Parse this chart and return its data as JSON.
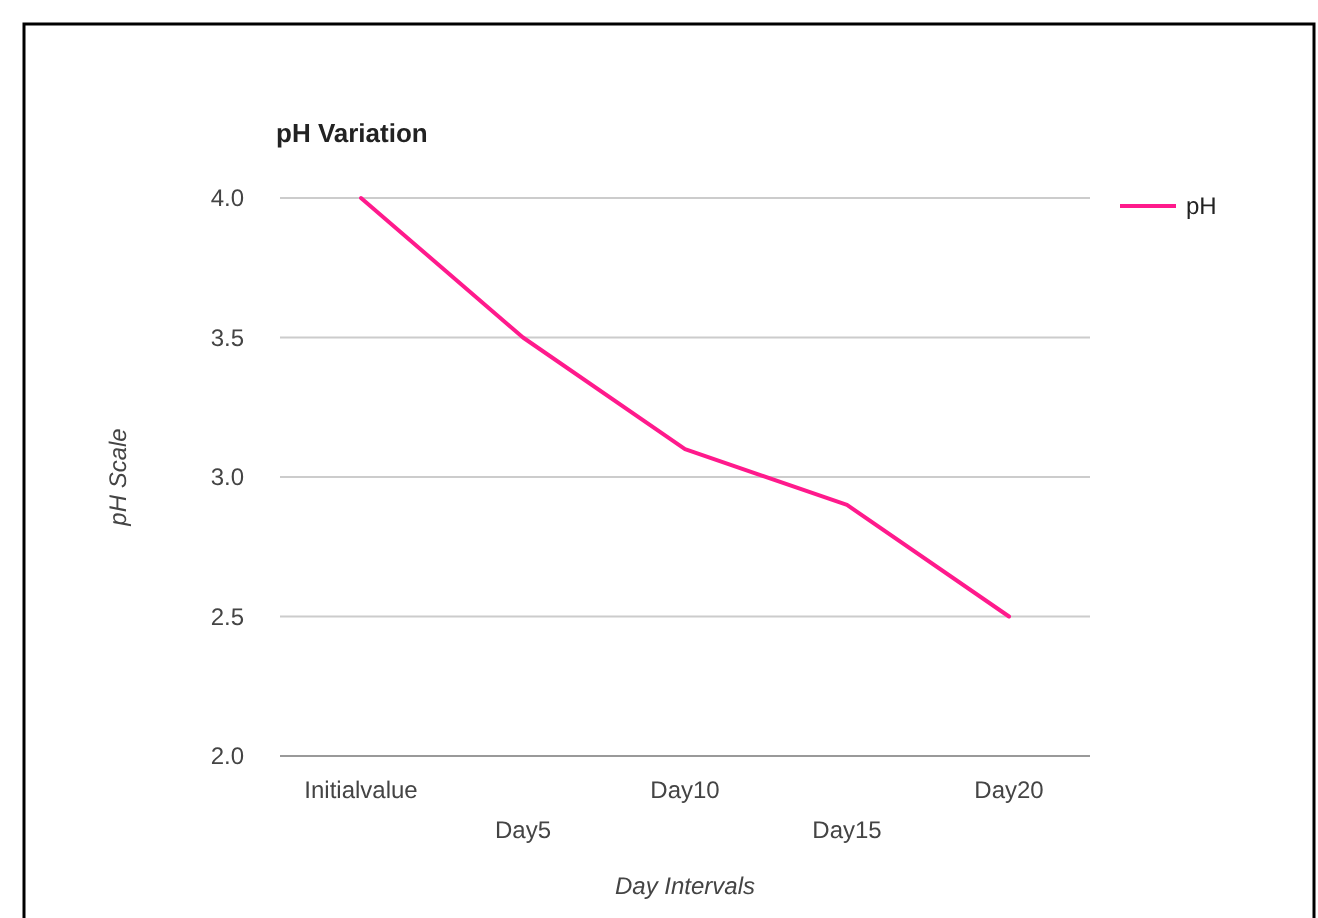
{
  "chart_data": {
    "type": "line",
    "title": "pH Variation",
    "xlabel": "Day Intervals",
    "ylabel": "pH Scale",
    "categories": [
      "Initialvalue",
      "Day5",
      "Day10",
      "Day15",
      "Day20"
    ],
    "series": [
      {
        "name": "pH",
        "color": "#ff1a8c",
        "values": [
          4.0,
          3.5,
          3.1,
          2.9,
          2.5
        ]
      }
    ],
    "ylim": [
      2,
      4
    ],
    "yticks": [
      {
        "value": 2,
        "label": "2.0"
      },
      {
        "value": 2.5,
        "label": "2.5"
      },
      {
        "value": 3,
        "label": "3.0"
      },
      {
        "value": 3.5,
        "label": "3.5"
      },
      {
        "value": 4,
        "label": "4.0"
      }
    ],
    "grid": true,
    "legend": "right",
    "marker": "none",
    "line_style": "solid"
  }
}
